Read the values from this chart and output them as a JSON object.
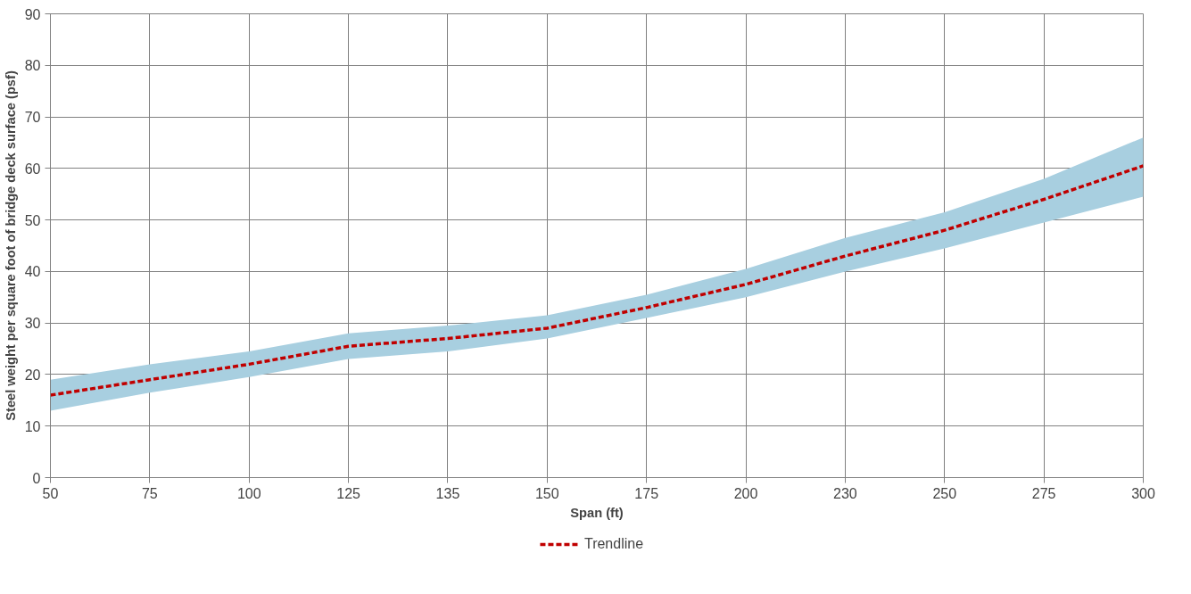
{
  "chart_data": {
    "type": "line",
    "xlabel": "Span (ft)",
    "ylabel": "Steel weight per square foot of bridge deck surface (psf)",
    "categories": [
      "50",
      "75",
      "100",
      "125",
      "135",
      "150",
      "175",
      "200",
      "230",
      "250",
      "275",
      "300"
    ],
    "series": [
      {
        "name": "Trendline",
        "color": "#c00000",
        "line_style": "dashed",
        "values": [
          16,
          19,
          22,
          25.5,
          27,
          29,
          33,
          37.5,
          43,
          48,
          54,
          60.5
        ],
        "lower": [
          13,
          16.5,
          19.5,
          23,
          24.5,
          27,
          31,
          35,
          40,
          44.5,
          49.5,
          54.5
        ],
        "upper": [
          19,
          22,
          24.5,
          28,
          29.5,
          31.5,
          35.5,
          40.5,
          46.5,
          51.5,
          58,
          66
        ]
      }
    ],
    "ylim": [
      0,
      90
    ],
    "yticks": [
      0,
      10,
      20,
      30,
      40,
      50,
      60,
      70,
      80,
      90
    ],
    "grid": true,
    "legend": "bottom",
    "marker": "none"
  }
}
